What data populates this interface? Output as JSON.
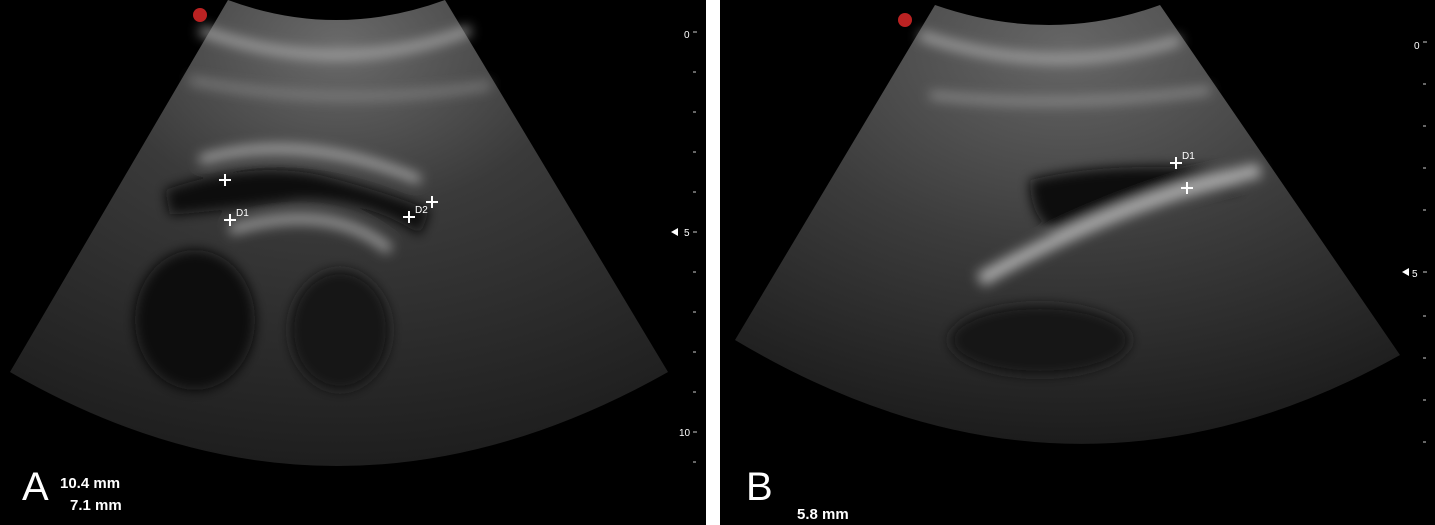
{
  "panels": [
    {
      "label": "A",
      "measurements": [
        "10.4 mm",
        "7.1 mm"
      ],
      "markers": [
        "D1",
        "D2"
      ],
      "depth_labels": [
        "0",
        "5",
        "10"
      ]
    },
    {
      "label": "B",
      "measurements": [
        "5.8 mm"
      ],
      "markers": [
        "D1"
      ],
      "depth_labels": [
        "0",
        "5"
      ]
    }
  ]
}
